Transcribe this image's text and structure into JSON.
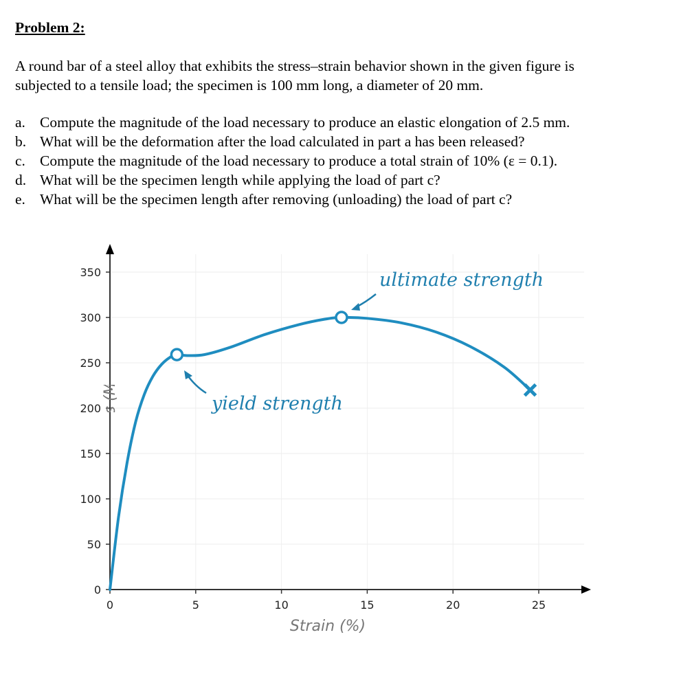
{
  "problem": {
    "title": "Problem 2:",
    "intro_lines": [
      "A round bar of a steel alloy that exhibits the stress–strain behavior shown in the given figure is",
      "subjected to a tensile load; the specimen is 100 mm long, a diameter of 20 mm."
    ],
    "questions": [
      {
        "marker": "a.",
        "text": "Compute the magnitude of the load necessary to produce an elastic elongation of 2.5 mm."
      },
      {
        "marker": "b.",
        "text": "What will be the deformation after the load calculated in part a has been released?"
      },
      {
        "marker": "c.",
        "text": "Compute the magnitude of the load necessary to produce a total strain of 10% (ε = 0.1)."
      },
      {
        "marker": "d.",
        "text": "What will be the specimen length while applying the load of part c?"
      },
      {
        "marker": "e.",
        "text": "What will be the specimen length after removing (unloading) the load of part c?"
      }
    ]
  },
  "chart_data": {
    "type": "line",
    "title": "",
    "xlabel": "Strain (%)",
    "ylabel": "Stress (MPa)",
    "xlim": [
      0,
      27.5
    ],
    "ylim": [
      0,
      370
    ],
    "xticks": [
      "0",
      "5",
      "10",
      "15",
      "20",
      "25"
    ],
    "xtick_values": [
      0,
      5,
      10,
      15,
      20,
      25
    ],
    "yticks": [
      "0",
      "50",
      "100",
      "150",
      "200",
      "250",
      "300",
      "350"
    ],
    "ytick_values": [
      0,
      50,
      100,
      150,
      200,
      250,
      300,
      350
    ],
    "grid": true,
    "series": [
      {
        "name": "stress-strain",
        "color": "#1f8dc0",
        "x": [
          0,
          0.5,
          1,
          1.5,
          2,
          2.5,
          3,
          3.5,
          3.9,
          4.5,
          5.5,
          7,
          9,
          11,
          12.5,
          13.5,
          15,
          17,
          19,
          21,
          23,
          24.5
        ],
        "y": [
          0,
          80,
          140,
          185,
          215,
          235,
          248,
          256,
          259,
          258,
          259,
          267,
          281,
          292,
          298,
          300,
          299,
          294,
          284,
          268,
          245,
          220
        ]
      }
    ],
    "annotations": [
      {
        "label": "yield strength",
        "x": 3.9,
        "y": 259,
        "marker": "open-circle"
      },
      {
        "label": "ultimate strength",
        "x": 13.5,
        "y": 300,
        "marker": "open-circle"
      },
      {
        "label": "",
        "x": 24.5,
        "y": 220,
        "marker": "x-fracture"
      }
    ]
  }
}
